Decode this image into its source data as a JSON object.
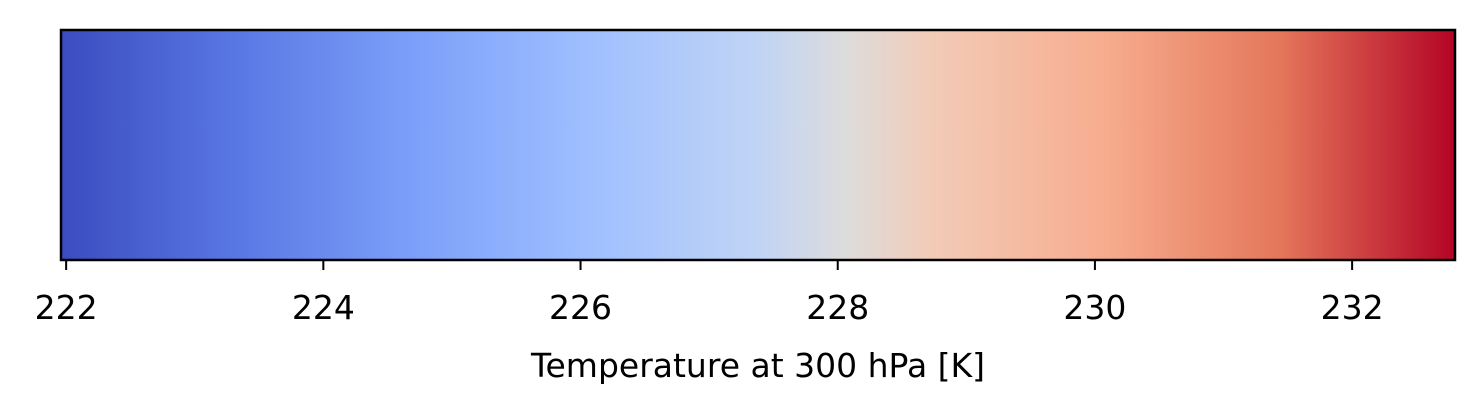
{
  "chart_data": {
    "type": "colorbar",
    "orientation": "horizontal",
    "colormap": "coolwarm",
    "xlabel": "Temperature at 300 hPa [K]",
    "vmin": 221.96,
    "vmax": 232.8,
    "ticks": [
      222,
      224,
      226,
      228,
      230,
      232
    ],
    "tick_labels": [
      "222",
      "224",
      "226",
      "228",
      "230",
      "232"
    ],
    "color_stops": [
      {
        "pos": 0.0,
        "color": "#3b4cc0"
      },
      {
        "pos": 0.125,
        "color": "#5977e3"
      },
      {
        "pos": 0.25,
        "color": "#7b9ff9"
      },
      {
        "pos": 0.375,
        "color": "#9ebeff"
      },
      {
        "pos": 0.5,
        "color": "#c0d4f5"
      },
      {
        "pos": 0.5625,
        "color": "#dddcdc"
      },
      {
        "pos": 0.625,
        "color": "#f2cbb7"
      },
      {
        "pos": 0.75,
        "color": "#f7ac8e"
      },
      {
        "pos": 0.875,
        "color": "#e4765a"
      },
      {
        "pos": 1.0,
        "color": "#b40426"
      }
    ]
  }
}
